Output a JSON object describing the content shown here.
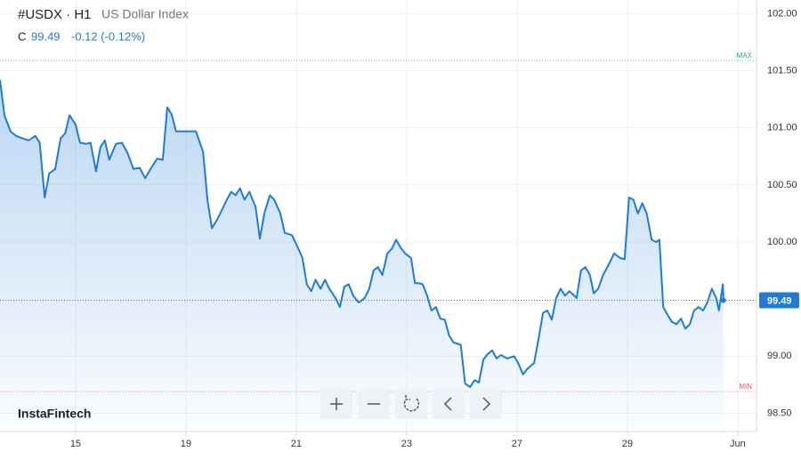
{
  "chart_data": {
    "type": "line",
    "symbol": "#USDX · H1",
    "title": "US Dollar Index",
    "close_prefix": "C",
    "last": 99.49,
    "change": "-0.12 (-0.12%)",
    "brand": "InstaFintech",
    "max_label": "MAX",
    "max_line": 101.59,
    "min_label": "MIN",
    "min_line": 98.69,
    "xlim": [
      -1.37,
      12.34
    ],
    "xticks": [
      {
        "value": 0,
        "label": "15"
      },
      {
        "value": 2,
        "label": "19"
      },
      {
        "value": 4,
        "label": "21"
      },
      {
        "value": 6,
        "label": "23"
      },
      {
        "value": 8,
        "label": "27"
      },
      {
        "value": 10,
        "label": "29"
      },
      {
        "value": 12,
        "label": "Jun"
      }
    ],
    "ylim": [
      98.34,
      102.12
    ],
    "yticks": [
      {
        "value": 98.5,
        "label": "98.50"
      },
      {
        "value": 99,
        "label": "99.00"
      },
      {
        "value": 100,
        "label": "100.00"
      },
      {
        "value": 100.5,
        "label": "100.50"
      },
      {
        "value": 101,
        "label": "101.00"
      },
      {
        "value": 101.5,
        "label": "101.50"
      },
      {
        "value": 102,
        "label": "102.00"
      }
    ],
    "grid": true,
    "x": [
      -1.37,
      -1.29,
      -1.18,
      -1.08,
      -0.97,
      -0.85,
      -0.73,
      -0.65,
      -0.56,
      -0.48,
      -0.37,
      -0.27,
      -0.19,
      -0.11,
      0,
      0.08,
      0.19,
      0.27,
      0.37,
      0.45,
      0.53,
      0.61,
      0.73,
      0.84,
      0.94,
      1.05,
      1.16,
      1.26,
      1.37,
      1.48,
      1.58,
      1.66,
      1.74,
      1.82,
      2.02,
      2.18,
      2.31,
      2.39,
      2.47,
      2.58,
      2.66,
      2.74,
      2.82,
      2.9,
      2.98,
      3.06,
      3.15,
      3.26,
      3.34,
      3.42,
      3.52,
      3.6,
      3.71,
      3.79,
      3.92,
      4.03,
      4.11,
      4.19,
      4.27,
      4.35,
      4.44,
      4.52,
      4.6,
      4.71,
      4.79,
      4.87,
      4.95,
      5.03,
      5.13,
      5.24,
      5.32,
      5.4,
      5.48,
      5.56,
      5.65,
      5.73,
      5.81,
      5.89,
      5.97,
      6.08,
      6.15,
      6.21,
      6.29,
      6.37,
      6.45,
      6.53,
      6.61,
      6.69,
      6.77,
      6.85,
      6.98,
      7.06,
      7.15,
      7.23,
      7.31,
      7.39,
      7.47,
      7.55,
      7.63,
      7.71,
      7.82,
      7.95,
      8.03,
      8.11,
      8.19,
      8.31,
      8.39,
      8.47,
      8.55,
      8.63,
      8.71,
      8.79,
      8.87,
      8.95,
      9.08,
      9.16,
      9.24,
      9.32,
      9.39,
      9.47,
      9.56,
      9.68,
      9.76,
      9.87,
      9.95,
      10.03,
      10.11,
      10.19,
      10.27,
      10.35,
      10.44,
      10.52,
      10.58,
      10.65,
      10.73,
      10.81,
      10.89,
      10.97,
      11.05,
      11.13,
      11.21,
      11.29,
      11.37,
      11.45,
      11.53,
      11.61,
      11.66,
      11.73,
      11.74
    ],
    "series": [
      {
        "name": "USDX",
        "color": "#1f7bd6",
        "values": [
          101.42,
          101.11,
          100.97,
          100.93,
          100.91,
          100.89,
          100.93,
          100.87,
          100.39,
          100.6,
          100.64,
          100.91,
          100.95,
          101.11,
          101.03,
          100.87,
          100.86,
          100.87,
          100.62,
          100.83,
          100.89,
          100.72,
          100.86,
          100.87,
          100.78,
          100.64,
          100.65,
          100.56,
          100.65,
          100.73,
          100.72,
          101.18,
          101.12,
          100.97,
          100.97,
          100.97,
          100.79,
          100.37,
          100.12,
          100.21,
          100.29,
          100.37,
          100.44,
          100.41,
          100.47,
          100.37,
          100.44,
          100.31,
          100.03,
          100.25,
          100.41,
          100.37,
          100.25,
          100.08,
          100.06,
          99.95,
          99.86,
          99.63,
          99.57,
          99.67,
          99.59,
          99.67,
          99.59,
          99.51,
          99.43,
          99.61,
          99.63,
          99.53,
          99.47,
          99.51,
          99.59,
          99.75,
          99.78,
          99.71,
          99.9,
          99.94,
          100.02,
          99.95,
          99.9,
          99.86,
          99.64,
          99.64,
          99.63,
          99.53,
          99.4,
          99.43,
          99.33,
          99.32,
          99.18,
          99.12,
          99.1,
          98.76,
          98.73,
          98.79,
          98.77,
          98.97,
          99.02,
          99.05,
          98.98,
          99.01,
          98.98,
          99,
          98.93,
          98.84,
          98.89,
          98.94,
          99.15,
          99.38,
          99.4,
          99.32,
          99.51,
          99.59,
          99.53,
          99.57,
          99.51,
          99.75,
          99.78,
          99.71,
          99.55,
          99.59,
          99.71,
          99.82,
          99.9,
          99.86,
          99.85,
          100.39,
          100.37,
          100.25,
          100.34,
          100.25,
          100.02,
          100,
          100.02,
          99.43,
          99.36,
          99.3,
          99.28,
          99.33,
          99.24,
          99.28,
          99.4,
          99.43,
          99.4,
          99.47,
          99.59,
          99.51,
          99.4,
          99.63,
          99.49
        ]
      }
    ]
  }
}
